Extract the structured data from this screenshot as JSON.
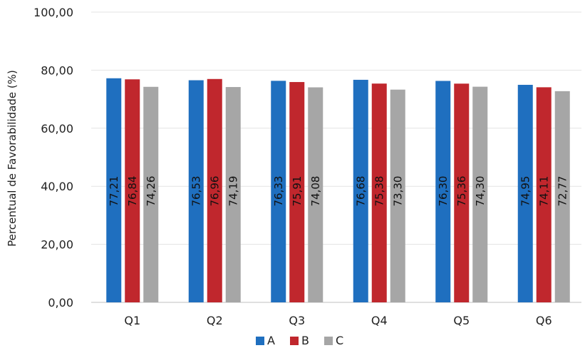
{
  "chart_data": {
    "type": "bar",
    "title": "",
    "xlabel": "",
    "ylabel": "Percentual de Favorabilidade (%)",
    "ylim": [
      0,
      100
    ],
    "yticks": [
      "0,00",
      "20,00",
      "40,00",
      "60,00",
      "80,00",
      "100,00"
    ],
    "categories": [
      "Q1",
      "Q2",
      "Q3",
      "Q4",
      "Q5",
      "Q6"
    ],
    "series": [
      {
        "name": "A",
        "color": "#1F6FBF",
        "values": [
          77.21,
          76.53,
          76.33,
          76.68,
          76.3,
          74.95
        ],
        "labels": [
          "77,21",
          "76,53",
          "76,33",
          "76,68",
          "76,30",
          "74,95"
        ]
      },
      {
        "name": "B",
        "color": "#C0272D",
        "values": [
          76.84,
          76.96,
          75.91,
          75.38,
          75.36,
          74.11
        ],
        "labels": [
          "76,84",
          "76,96",
          "75,91",
          "75,38",
          "75,36",
          "74,11"
        ]
      },
      {
        "name": "C",
        "color": "#A6A6A6",
        "values": [
          74.26,
          74.19,
          74.08,
          73.3,
          74.3,
          72.77
        ],
        "labels": [
          "74,26",
          "74,19",
          "74,08",
          "73,30",
          "74,30",
          "72,77"
        ]
      }
    ],
    "grid": true,
    "legend": "bottom"
  }
}
